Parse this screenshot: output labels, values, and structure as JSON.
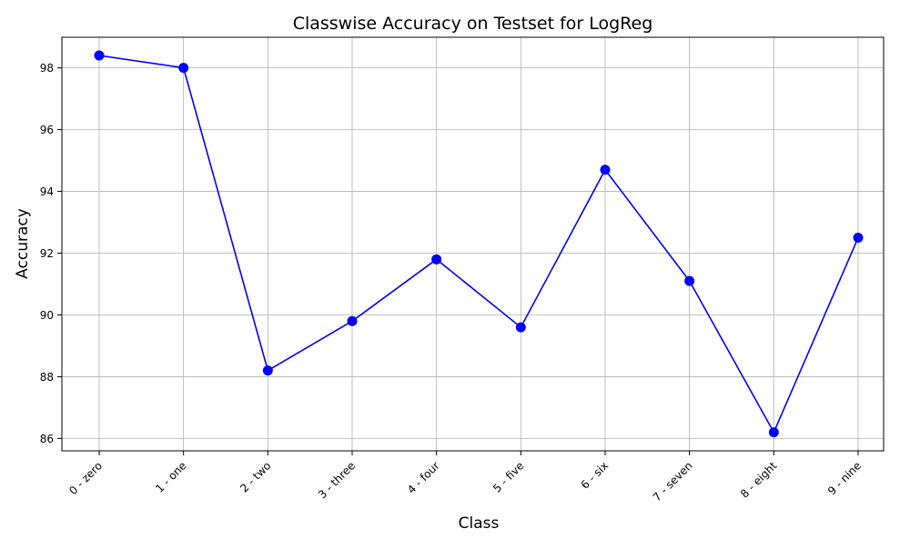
{
  "chart_data": {
    "type": "line",
    "title": "Classwise Accuracy on Testset for LogReg",
    "xlabel": "Class",
    "ylabel": "Accuracy",
    "categories": [
      "0 - zero",
      "1 - one",
      "2 - two",
      "3 - three",
      "4 - four",
      "5 - five",
      "6 - six",
      "7 - seven",
      "8 - eight",
      "9 - nine"
    ],
    "series": [
      {
        "values": [
          98.4,
          98.0,
          88.2,
          89.8,
          91.8,
          89.6,
          94.7,
          91.1,
          86.2,
          92.5
        ],
        "color": "#0000ff",
        "marker": "circle"
      }
    ],
    "yticks": [
      "86",
      "88",
      "90",
      "92",
      "94",
      "96",
      "98"
    ],
    "ylim": [
      85.6,
      98.99
    ],
    "grid": true,
    "xtick_rotation": 45,
    "colors": {
      "grid": "#b0b0b0",
      "axis": "#000000"
    }
  }
}
